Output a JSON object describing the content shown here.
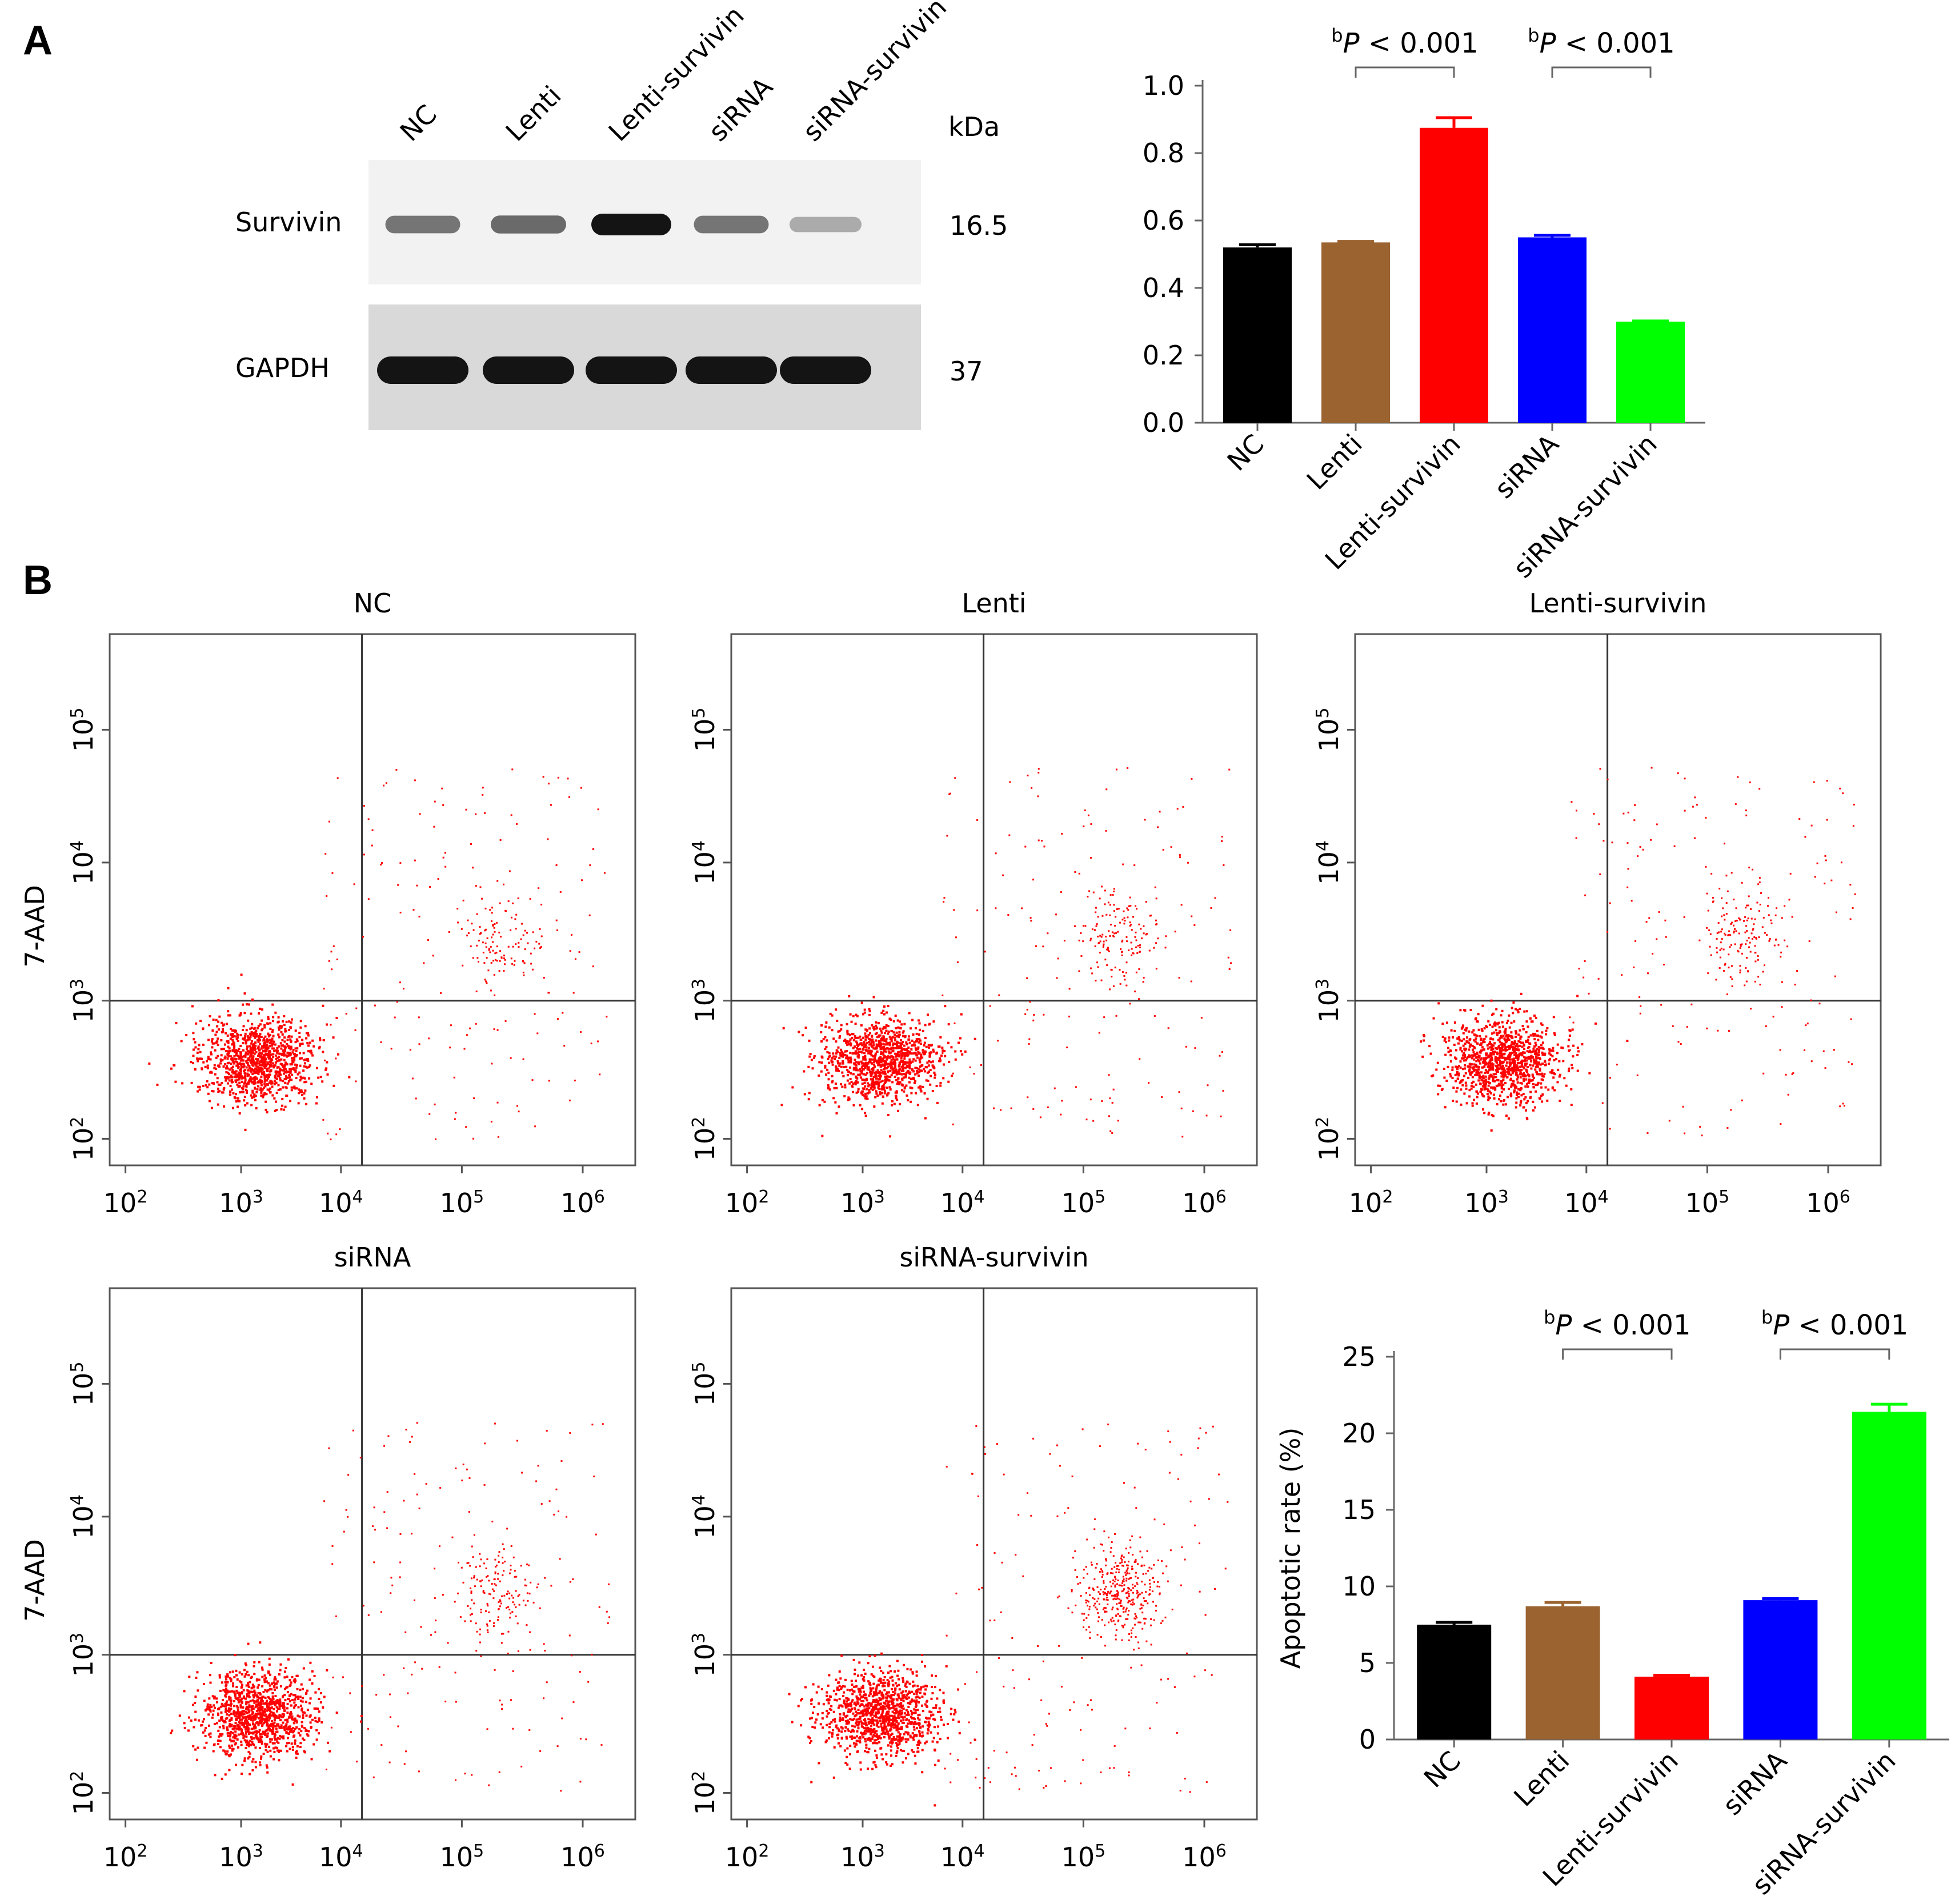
{
  "panels": {
    "a": "A",
    "b": "B"
  },
  "western_blot": {
    "lanes": [
      "NC",
      "Lenti",
      "Lenti-survivin",
      "siRNA",
      "siRNA-survivin"
    ],
    "unit": "kDa",
    "bands": [
      {
        "protein": "Survivin",
        "weight": "16.5",
        "intensities": [
          0.55,
          0.6,
          1.0,
          0.55,
          0.3
        ]
      },
      {
        "protein": "GAPDH",
        "weight": "37",
        "intensities": [
          1.0,
          1.0,
          1.0,
          1.0,
          1.0
        ]
      }
    ]
  },
  "chart_data": [
    {
      "type": "bar",
      "categories": [
        "NC",
        "Lenti",
        "Lenti-survivin",
        "siRNA",
        "siRNA-survivin"
      ],
      "values": [
        0.52,
        0.535,
        0.875,
        0.55,
        0.3
      ],
      "errors": [
        0.008,
        0.003,
        0.03,
        0.006,
        0.002
      ],
      "colors": [
        "#000000",
        "#9a6330",
        "#ff0000",
        "#0000ff",
        "#00ff00"
      ],
      "ylim": [
        0,
        1.0
      ],
      "yticks": [
        "0.0",
        "0.2",
        "0.4",
        "0.6",
        "0.8",
        "1.0"
      ],
      "ylabel": "",
      "significance": [
        {
          "from": 1,
          "to": 2,
          "sup": "b",
          "italic": "P",
          "text": " < 0.001"
        },
        {
          "from": 3,
          "to": 4,
          "sup": "b",
          "italic": "P",
          "text": " < 0.001"
        }
      ]
    },
    {
      "type": "bar",
      "categories": [
        "NC",
        "Lenti",
        "Lenti-survivin",
        "siRNA",
        "siRNA-survivin"
      ],
      "values": [
        7.5,
        8.7,
        4.1,
        9.1,
        21.4
      ],
      "errors": [
        0.15,
        0.25,
        0.1,
        0.1,
        0.5
      ],
      "colors": [
        "#000000",
        "#9a6330",
        "#ff0000",
        "#0000ff",
        "#00ff00"
      ],
      "ylim": [
        0,
        25
      ],
      "yticks": [
        "0",
        "5",
        "10",
        "15",
        "20",
        "25"
      ],
      "ylabel": "Apoptotic rate (%)",
      "significance": [
        {
          "from": 1,
          "to": 2,
          "sup": "b",
          "italic": "P",
          "text": " < 0.001"
        },
        {
          "from": 3,
          "to": 4,
          "sup": "b",
          "italic": "P",
          "text": " < 0.001"
        }
      ]
    }
  ],
  "flow_plots": {
    "ylabel": "7-AAD",
    "xticks": [
      {
        "b": "10",
        "e": "2"
      },
      {
        "b": "10",
        "e": "3"
      },
      {
        "b": "10",
        "e": "4"
      },
      {
        "b": "10",
        "e": "5"
      },
      {
        "b": "10",
        "e": "6"
      }
    ],
    "yticks": [
      {
        "b": "10",
        "e": "2"
      },
      {
        "b": "10",
        "e": "3"
      },
      {
        "b": "10",
        "e": "4"
      },
      {
        "b": "10",
        "e": "5"
      }
    ],
    "dot_color": "#ff0000",
    "plots": [
      {
        "title": "NC",
        "show_ylabel": true
      },
      {
        "title": "Lenti",
        "show_ylabel": false
      },
      {
        "title": "Lenti-survivin",
        "show_ylabel": false
      },
      {
        "title": "siRNA",
        "show_ylabel": true
      },
      {
        "title": "siRNA-survivin",
        "show_ylabel": false
      }
    ]
  }
}
